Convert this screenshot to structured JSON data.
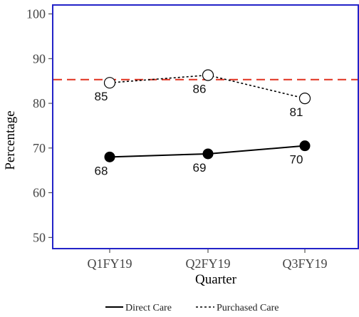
{
  "chart_data": {
    "type": "line",
    "categories": [
      "Q1FY19",
      "Q2FY19",
      "Q3FY19"
    ],
    "series": [
      {
        "name": "Direct Care",
        "values": [
          68,
          68.7,
          70.5
        ],
        "labels": [
          "68",
          "69",
          "70"
        ],
        "line_style": "solid",
        "marker": "filled-circle"
      },
      {
        "name": "Purchased Care",
        "values": [
          84.6,
          86.3,
          81.1
        ],
        "labels": [
          "85",
          "86",
          "81"
        ],
        "line_style": "dotted",
        "marker": "open-circle"
      }
    ],
    "reference_line": {
      "value": 85.3,
      "style": "dashed",
      "color": "#e0301e"
    },
    "xlabel": "Quarter",
    "ylabel": "Percentage",
    "ylim": [
      47.5,
      102
    ],
    "yticks": [
      50,
      60,
      70,
      80,
      90,
      100
    ],
    "grid": false,
    "legend_position": "bottom-center",
    "frame_color": "#2323c8"
  }
}
